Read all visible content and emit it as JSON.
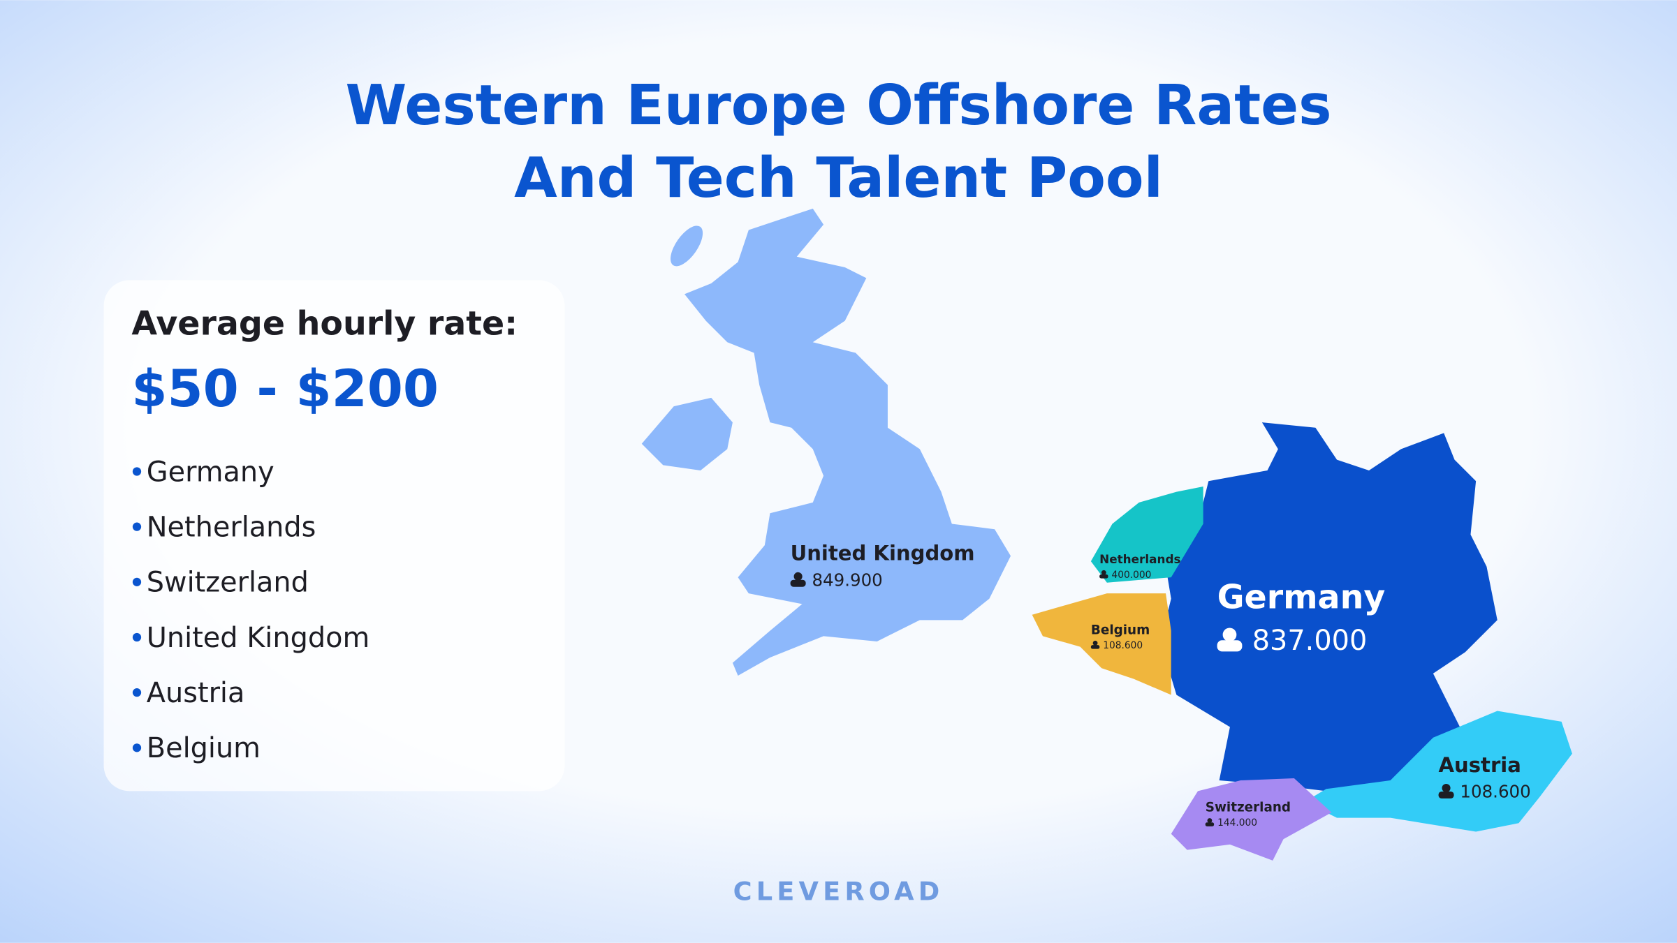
{
  "title": [
    "Western Europe Offshore Rates",
    "And Tech Talent Pool"
  ],
  "card": {
    "heading": "Average hourly rate:",
    "rate": "$50 - $200",
    "countries": [
      "Germany",
      "Netherlands",
      "Switzerland",
      "United Kingdom",
      "Austria",
      "Belgium"
    ]
  },
  "map": {
    "regions": [
      {
        "name": "United Kingdom",
        "talent": "849.900"
      },
      {
        "name": "Netherlands",
        "talent": "400.000"
      },
      {
        "name": "Belgium",
        "talent": "108.600"
      },
      {
        "name": "Germany",
        "talent": "837.000"
      },
      {
        "name": "Austria",
        "talent": "108.600"
      },
      {
        "name": "Switzerland",
        "talent": "144.000"
      }
    ]
  },
  "footer": {
    "logo": "CLEVEROAD"
  }
}
